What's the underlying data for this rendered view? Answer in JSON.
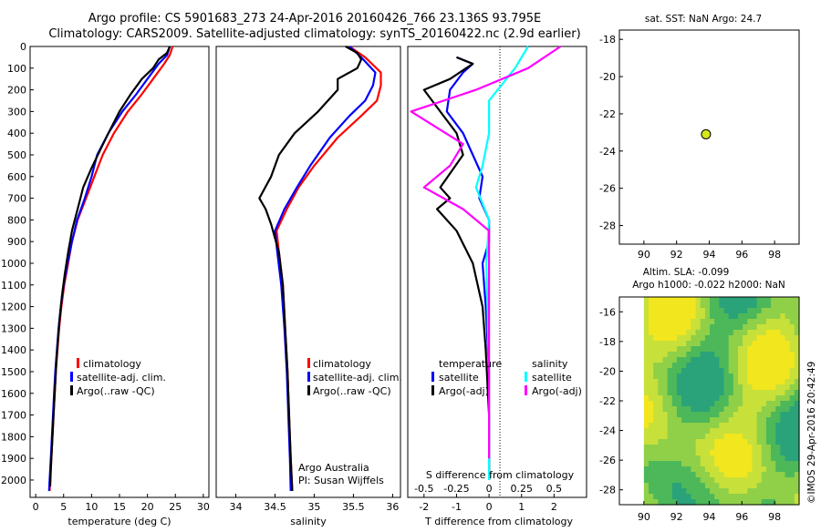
{
  "title_line1": "Argo profile: CS 5901683_273 24-Apr-2016 20160426_766 23.136S 93.795E",
  "title_line2": "Climatology: CARS2009. Satellite-adjusted climatology: synTS_20160422.nc (2.9d earlier)",
  "colors": {
    "climatology": "#ff0000",
    "satellite": "#0000ff",
    "argo": "#000000",
    "t_sat": "#0000ff",
    "t_argo": "#000000",
    "s_sat": "#00ffff",
    "s_argo": "#ff00ff"
  },
  "chart_data": [
    {
      "type": "line",
      "name": "temperature",
      "xlabel": "temperature (deg C)",
      "xlim": [
        -1,
        31
      ],
      "ylim": [
        2080,
        0
      ],
      "xticks": [
        0,
        5,
        10,
        15,
        20,
        25,
        30
      ],
      "yticks": [
        0,
        100,
        200,
        300,
        400,
        500,
        600,
        700,
        800,
        900,
        1000,
        1100,
        1200,
        1300,
        1400,
        1500,
        1600,
        1700,
        1800,
        1900,
        2000
      ],
      "legend": [
        "climatology",
        "satellite-adj. clim.",
        "Argo(..raw -QC)"
      ],
      "series": [
        {
          "name": "climatology",
          "color_key": "climatology",
          "points": [
            [
              24.5,
              0
            ],
            [
              24,
              40
            ],
            [
              23,
              80
            ],
            [
              21,
              150
            ],
            [
              19,
              220
            ],
            [
              16.5,
              300
            ],
            [
              14,
              400
            ],
            [
              12,
              500
            ],
            [
              10.5,
              600
            ],
            [
              9,
              700
            ],
            [
              7.5,
              800
            ],
            [
              6.5,
              900
            ],
            [
              5.8,
              1000
            ],
            [
              5.1,
              1100
            ],
            [
              4.6,
              1200
            ],
            [
              4.2,
              1300
            ],
            [
              3.9,
              1400
            ],
            [
              3.6,
              1500
            ],
            [
              3.4,
              1600
            ],
            [
              3.2,
              1700
            ],
            [
              3,
              1800
            ],
            [
              2.8,
              1900
            ],
            [
              2.6,
              2000
            ],
            [
              2.5,
              2050
            ]
          ]
        },
        {
          "name": "satellite-adj. clim.",
          "color_key": "satellite",
          "points": [
            [
              24,
              0
            ],
            [
              23.5,
              40
            ],
            [
              22,
              80
            ],
            [
              20,
              150
            ],
            [
              18,
              220
            ],
            [
              15.5,
              300
            ],
            [
              13,
              400
            ],
            [
              11,
              500
            ],
            [
              10,
              600
            ],
            [
              8.8,
              700
            ],
            [
              7.4,
              800
            ],
            [
              6.5,
              900
            ],
            [
              5.7,
              1000
            ],
            [
              5,
              1100
            ],
            [
              4.5,
              1200
            ],
            [
              4.1,
              1300
            ],
            [
              3.8,
              1400
            ],
            [
              3.5,
              1500
            ],
            [
              3.3,
              1600
            ],
            [
              3.1,
              1700
            ],
            [
              2.9,
              1800
            ],
            [
              2.7,
              1900
            ],
            [
              2.5,
              2000
            ],
            [
              2.4,
              2050
            ]
          ]
        },
        {
          "name": "Argo(..raw -QC)",
          "color_key": "argo",
          "points": [
            [
              24,
              0
            ],
            [
              23.5,
              30
            ],
            [
              22,
              60
            ],
            [
              21,
              100
            ],
            [
              19,
              150
            ],
            [
              17,
              220
            ],
            [
              15,
              300
            ],
            [
              13,
              400
            ],
            [
              11.5,
              480
            ],
            [
              10,
              560
            ],
            [
              8.5,
              650
            ],
            [
              7.5,
              750
            ],
            [
              6.5,
              850
            ],
            [
              5.8,
              950
            ],
            [
              5.2,
              1050
            ],
            [
              4.7,
              1150
            ],
            [
              4.3,
              1250
            ],
            [
              4,
              1350
            ],
            [
              3.7,
              1450
            ],
            [
              3.5,
              1550
            ],
            [
              3.3,
              1650
            ],
            [
              3.1,
              1750
            ],
            [
              2.9,
              1850
            ],
            [
              2.7,
              1950
            ],
            [
              2.6,
              2030
            ]
          ]
        }
      ]
    },
    {
      "type": "line",
      "name": "salinity",
      "xlabel": "salinity",
      "xlim": [
        33.75,
        36.1
      ],
      "ylim": [
        2080,
        0
      ],
      "xticks": [
        34,
        34.5,
        35,
        35.5,
        36
      ],
      "legend": [
        "climatology",
        "satellite-adj. clim.",
        "Argo(..raw -QC)"
      ],
      "annotation": [
        "Argo Australia",
        "PI: Susan Wijffels"
      ],
      "series": [
        {
          "name": "climatology",
          "color_key": "climatology",
          "points": [
            [
              35.45,
              0
            ],
            [
              35.65,
              50
            ],
            [
              35.85,
              120
            ],
            [
              35.85,
              180
            ],
            [
              35.8,
              250
            ],
            [
              35.6,
              320
            ],
            [
              35.3,
              420
            ],
            [
              35,
              550
            ],
            [
              34.8,
              650
            ],
            [
              34.65,
              750
            ],
            [
              34.52,
              850
            ],
            [
              34.55,
              950
            ],
            [
              34.6,
              1100
            ],
            [
              34.63,
              1300
            ],
            [
              34.66,
              1500
            ],
            [
              34.68,
              1700
            ],
            [
              34.7,
              1900
            ],
            [
              34.72,
              2050
            ]
          ]
        },
        {
          "name": "satellite-adj. clim.",
          "color_key": "satellite",
          "points": [
            [
              35.45,
              0
            ],
            [
              35.6,
              50
            ],
            [
              35.78,
              120
            ],
            [
              35.75,
              180
            ],
            [
              35.65,
              250
            ],
            [
              35.45,
              320
            ],
            [
              35.2,
              420
            ],
            [
              34.95,
              550
            ],
            [
              34.78,
              650
            ],
            [
              34.62,
              750
            ],
            [
              34.5,
              850
            ],
            [
              34.53,
              950
            ],
            [
              34.58,
              1100
            ],
            [
              34.62,
              1300
            ],
            [
              34.65,
              1500
            ],
            [
              34.67,
              1700
            ],
            [
              34.69,
              1900
            ],
            [
              34.7,
              2050
            ]
          ]
        },
        {
          "name": "Argo(..raw -QC)",
          "color_key": "argo",
          "points": [
            [
              35.4,
              0
            ],
            [
              35.55,
              30
            ],
            [
              35.6,
              60
            ],
            [
              35.55,
              100
            ],
            [
              35.3,
              150
            ],
            [
              35.3,
              200
            ],
            [
              35.05,
              300
            ],
            [
              34.9,
              350
            ],
            [
              34.75,
              400
            ],
            [
              34.55,
              500
            ],
            [
              34.45,
              600
            ],
            [
              34.3,
              700
            ],
            [
              34.38,
              750
            ],
            [
              34.45,
              820
            ],
            [
              34.55,
              950
            ],
            [
              34.6,
              1100
            ],
            [
              34.63,
              1300
            ],
            [
              34.66,
              1500
            ],
            [
              34.68,
              1700
            ],
            [
              34.7,
              1900
            ],
            [
              34.72,
              2050
            ]
          ]
        }
      ]
    },
    {
      "type": "line",
      "name": "T difference from climatology",
      "xlabel": "T difference from climatology",
      "xlim": [
        -2.5,
        3
      ],
      "ylim": [
        2080,
        0
      ],
      "xticks": [
        -2,
        -1,
        0,
        1,
        2
      ],
      "xticklabels_bottom": [
        "-2",
        "-1",
        "0",
        "1",
        "2"
      ],
      "xticks_s": [
        -0.5,
        -0.25,
        0,
        0.25,
        0.5
      ],
      "s_label": "S difference from climatology",
      "legend_t": {
        "title": "temperature",
        "items": [
          "satellite",
          "Argo(-adj)"
        ]
      },
      "legend_s": {
        "title": "salinity",
        "items": [
          "satellite",
          "Argo(-adj)"
        ]
      },
      "series": [
        {
          "name": "satellite",
          "color_key": "t_sat",
          "points": [
            [
              -1,
              50
            ],
            [
              -0.5,
              80
            ],
            [
              -0.8,
              120
            ],
            [
              -1.2,
              200
            ],
            [
              -1.3,
              300
            ],
            [
              -0.8,
              400
            ],
            [
              -0.5,
              500
            ],
            [
              -0.2,
              600
            ],
            [
              -0.3,
              700
            ],
            [
              0,
              800
            ],
            [
              0,
              900
            ],
            [
              -0.2,
              1000
            ],
            [
              -0.1,
              1200
            ],
            [
              0,
              1500
            ],
            [
              0,
              1800
            ],
            [
              0,
              2000
            ]
          ]
        },
        {
          "name": "Argo(-adj)",
          "color_key": "t_argo",
          "points": [
            [
              -1,
              50
            ],
            [
              -0.5,
              80
            ],
            [
              -1.2,
              150
            ],
            [
              -2,
              200
            ],
            [
              -1.5,
              300
            ],
            [
              -1,
              400
            ],
            [
              -0.8,
              500
            ],
            [
              -1.5,
              650
            ],
            [
              -1.2,
              700
            ],
            [
              -1.6,
              750
            ],
            [
              -1,
              850
            ],
            [
              -0.5,
              1000
            ],
            [
              -0.2,
              1200
            ],
            [
              -0.1,
              1400
            ],
            [
              0,
              1700
            ],
            [
              0,
              2000
            ]
          ]
        },
        {
          "name": "satellite (S)",
          "color_key": "s_sat",
          "points": [
            [
              0.3,
              0
            ],
            [
              0.2,
              100
            ],
            [
              0,
              250
            ],
            [
              0,
              400
            ],
            [
              -0.05,
              550
            ],
            [
              -0.1,
              650
            ],
            [
              0,
              800
            ],
            [
              -0.02,
              1000
            ],
            [
              0,
              1500
            ],
            [
              0,
              2000
            ]
          ]
        },
        {
          "name": "Argo(-adj) (S)",
          "color_key": "s_argo",
          "points": [
            [
              0.55,
              0
            ],
            [
              0.3,
              100
            ],
            [
              -0.1,
              200
            ],
            [
              -0.6,
              300
            ],
            [
              -0.2,
              450
            ],
            [
              -0.3,
              550
            ],
            [
              -0.5,
              650
            ],
            [
              -0.2,
              750
            ],
            [
              0,
              850
            ],
            [
              0,
              1000
            ],
            [
              0,
              1500
            ],
            [
              0,
              1900
            ]
          ]
        }
      ]
    },
    {
      "type": "scatter",
      "name": "map",
      "title": "sat. SST: NaN Argo: 24.7",
      "xlim": [
        88.5,
        99.5
      ],
      "ylim": [
        -29,
        -17.5
      ],
      "xticks": [
        90,
        92,
        94,
        96,
        98
      ],
      "yticks": [
        -18,
        -20,
        -22,
        -24,
        -26,
        -28
      ],
      "points": [
        {
          "x": 93.8,
          "y": -23.1
        }
      ]
    },
    {
      "type": "heatmap",
      "name": "altimetry",
      "title_line1": "Altim. SLA: -0.099",
      "title_line2": "Argo h1000: -0.022 h2000: NaN",
      "xlim": [
        88.5,
        99.5
      ],
      "ylim": [
        -29,
        -15
      ],
      "xticks": [
        90,
        92,
        94,
        96,
        98
      ],
      "yticks": [
        -16,
        -18,
        -20,
        -22,
        -24,
        -26,
        -28
      ],
      "field_start_x": 90
    }
  ],
  "side_text": "©IMOS 29-Apr-2016 20:42:49"
}
